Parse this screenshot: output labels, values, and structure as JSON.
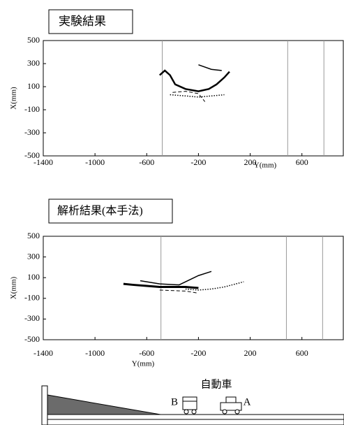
{
  "chart_data": [
    {
      "type": "line",
      "title": "実験結果",
      "x_label": "Y(mm)",
      "y_label": "X(mm)",
      "xlim": [
        -1400,
        920
      ],
      "ylim": [
        -500,
        500
      ],
      "xticks": [
        -1400,
        -1000,
        -600,
        -200,
        200,
        600
      ],
      "yticks": [
        -500,
        -300,
        -100,
        100,
        300,
        500
      ],
      "vlines": [
        -480,
        490,
        770
      ],
      "series": [
        {
          "color": "#000000",
          "dash": "solid",
          "width": 2.5,
          "x": [
            -500,
            -460,
            -420,
            -380,
            -300,
            -200,
            -120,
            -60,
            0,
            40
          ],
          "values": [
            200,
            240,
            200,
            120,
            80,
            60,
            80,
            120,
            180,
            230
          ]
        },
        {
          "color": "#000000",
          "dash": "solid",
          "width": 1.5,
          "x": [
            -200,
            -100,
            -20
          ],
          "values": [
            290,
            250,
            240
          ]
        },
        {
          "color": "#000000",
          "dash": "dotted",
          "width": 1.5,
          "x": [
            -420,
            -300,
            -200,
            -100,
            0
          ],
          "values": [
            30,
            20,
            10,
            20,
            30
          ]
        },
        {
          "color": "#000000",
          "dash": "dashed",
          "width": 1,
          "x": [
            -400,
            -300,
            -200,
            -150
          ],
          "values": [
            50,
            60,
            40,
            -30
          ]
        }
      ]
    },
    {
      "type": "line",
      "title": "解析結果(本手法)",
      "x_label": "Y(mm)",
      "y_label": "X(mm)",
      "xlim": [
        -1400,
        920
      ],
      "ylim": [
        -500,
        500
      ],
      "xticks": [
        -1400,
        -1000,
        -600,
        -200,
        200,
        600
      ],
      "yticks": [
        -500,
        -300,
        -100,
        100,
        300,
        500
      ],
      "vlines": [
        -490,
        480,
        760
      ],
      "series": [
        {
          "color": "#000000",
          "dash": "solid",
          "width": 3,
          "x": [
            -780,
            -700,
            -600,
            -500,
            -400,
            -300,
            -200
          ],
          "values": [
            40,
            30,
            20,
            10,
            10,
            10,
            0
          ]
        },
        {
          "color": "#000000",
          "dash": "solid",
          "width": 1.5,
          "x": [
            -650,
            -500,
            -350,
            -200,
            -100
          ],
          "values": [
            70,
            40,
            30,
            120,
            160
          ]
        },
        {
          "color": "#000000",
          "dash": "dotted",
          "width": 1.5,
          "x": [
            -300,
            -200,
            -100,
            0,
            150
          ],
          "values": [
            -10,
            -20,
            -10,
            10,
            60
          ]
        },
        {
          "color": "#000000",
          "dash": "dashed",
          "width": 1,
          "x": [
            -500,
            -300,
            -200
          ],
          "values": [
            -20,
            -30,
            -50
          ]
        }
      ]
    }
  ],
  "diagram": {
    "label": "自動車",
    "b": "B",
    "a": "A"
  }
}
